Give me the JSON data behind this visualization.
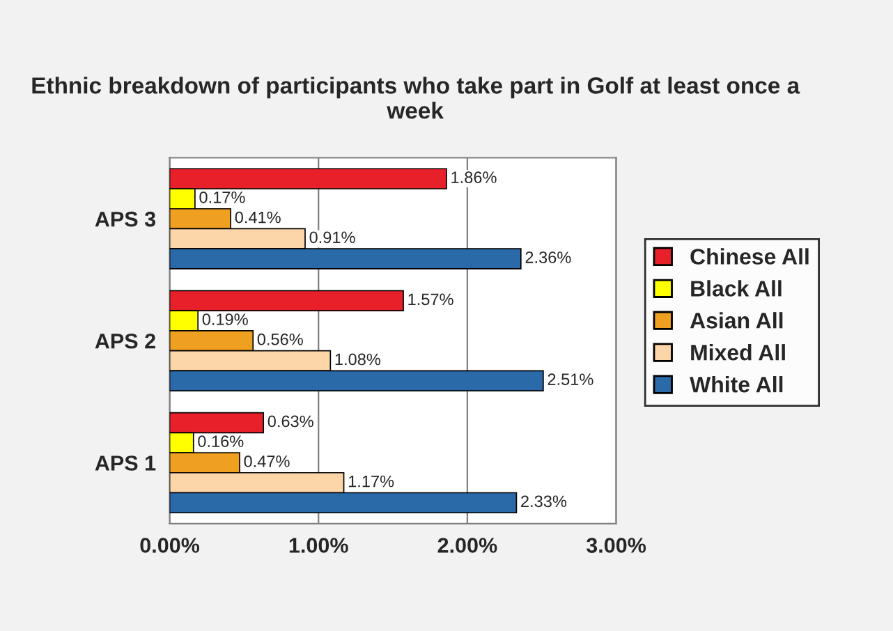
{
  "chart_data": {
    "type": "bar",
    "orientation": "horizontal",
    "title": "Ethnic breakdown of participants who take part in Golf at least once a week",
    "categories": [
      "APS 3",
      "APS 2",
      "APS 1"
    ],
    "series": [
      {
        "name": "Chinese All",
        "color": "#e8202a",
        "values": [
          1.86,
          1.57,
          0.63
        ],
        "value_labels": [
          "1.86%",
          "1.57%",
          "0.63%"
        ]
      },
      {
        "name": "Black All",
        "color": "#ffff00",
        "values": [
          0.17,
          0.19,
          0.16
        ],
        "value_labels": [
          "0.17%",
          "0.19%",
          "0.16%"
        ]
      },
      {
        "name": "Asian All",
        "color": "#f0a020",
        "values": [
          0.41,
          0.56,
          0.47
        ],
        "value_labels": [
          "0.41%",
          "0.56%",
          "0.47%"
        ]
      },
      {
        "name": "Mixed All",
        "color": "#fcd5a8",
        "values": [
          0.91,
          1.08,
          1.17
        ],
        "value_labels": [
          "0.91%",
          "1.08%",
          "1.17%"
        ]
      },
      {
        "name": "White All",
        "color": "#2a6aa8",
        "values": [
          2.36,
          2.51,
          2.33
        ],
        "value_labels": [
          "2.36%",
          "2.51%",
          "2.33%"
        ]
      }
    ],
    "xlim": [
      0,
      3
    ],
    "xticks": [
      {
        "value": 0,
        "label": "0.00%"
      },
      {
        "value": 1,
        "label": "1.00%"
      },
      {
        "value": 2,
        "label": "2.00%"
      },
      {
        "value": 3,
        "label": "3.00%"
      }
    ],
    "grid": "x",
    "legend": "right"
  }
}
